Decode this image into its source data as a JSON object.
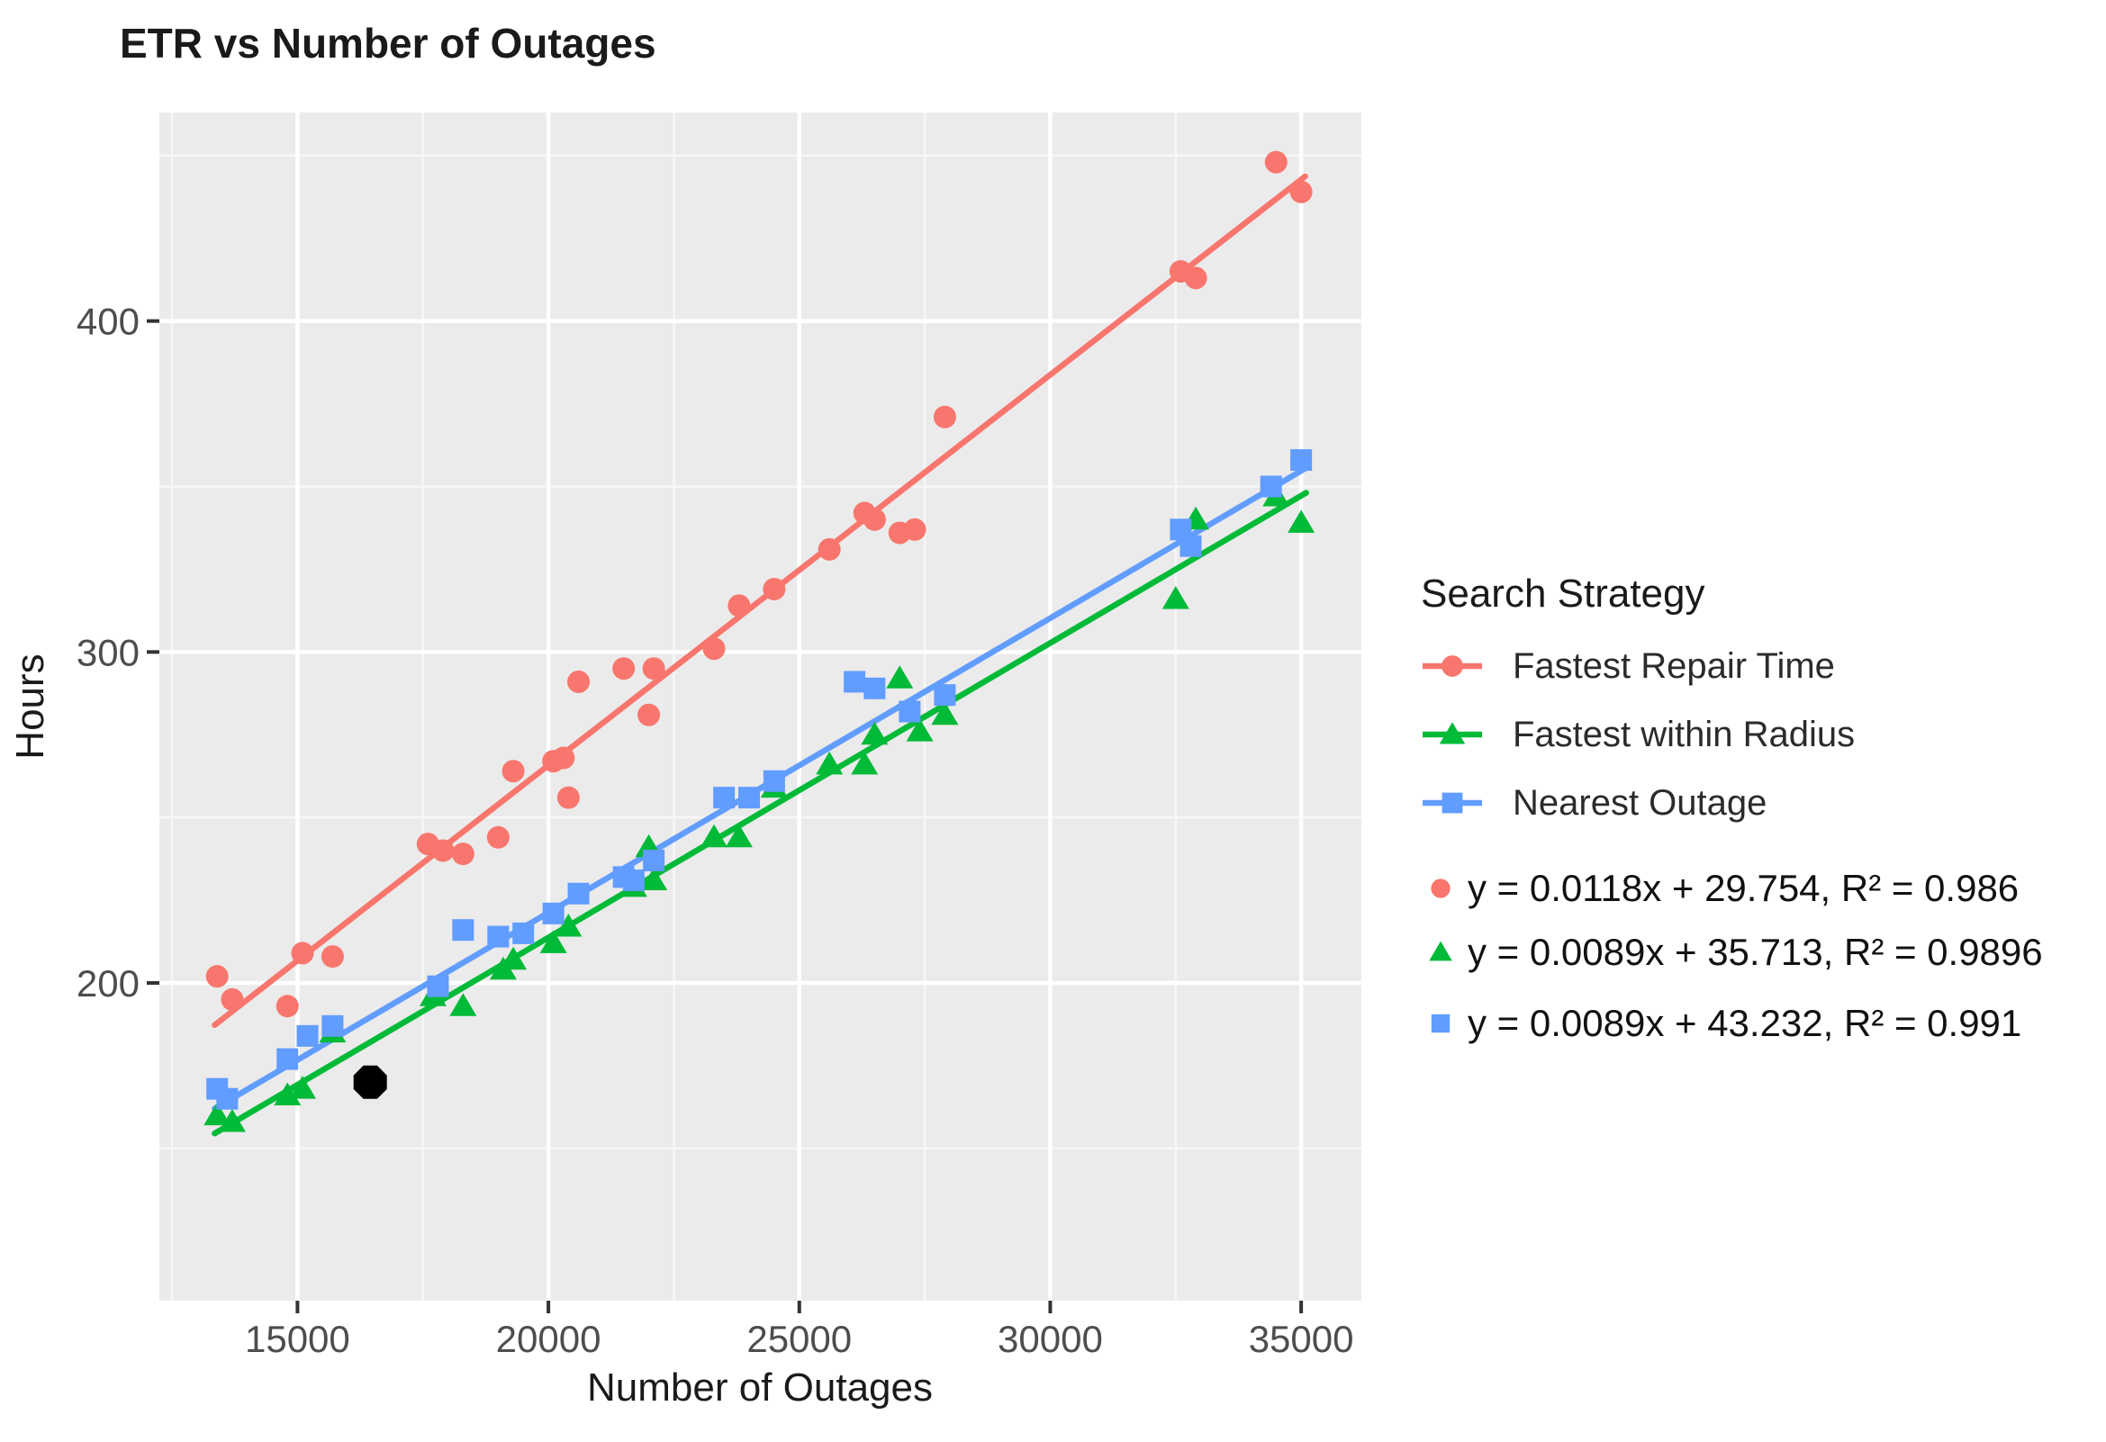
{
  "title": "ETR vs Number of Outages",
  "axes": {
    "x": {
      "label": "Number of Outages",
      "ticks": [
        15000,
        20000,
        25000,
        30000,
        35000
      ],
      "minor_ticks": [
        12500,
        17500,
        22500,
        27500,
        32500
      ]
    },
    "y": {
      "label": "Hours",
      "ticks": [
        200,
        300,
        400
      ],
      "minor_ticks": [
        150,
        250,
        350,
        450
      ]
    }
  },
  "legend": {
    "title": "Search Strategy",
    "items": [
      {
        "label": "Fastest Repair Time",
        "marker": "circle",
        "color": "#F8766D"
      },
      {
        "label": "Fastest within Radius",
        "marker": "triangle",
        "color": "#00BA38"
      },
      {
        "label": "Nearest Outage",
        "marker": "square",
        "color": "#619CFF"
      }
    ],
    "equations": [
      {
        "marker": "circle",
        "color": "#F8766D",
        "text": "y = 0.0118x + 29.754, R² = 0.986"
      },
      {
        "marker": "triangle",
        "color": "#00BA38",
        "text": "y = 0.0089x + 35.713, R² = 0.9896"
      },
      {
        "marker": "square",
        "color": "#619CFF",
        "text": "y = 0.0089x + 43.232, R² = 0.991"
      }
    ]
  },
  "colors": {
    "plot_bg": "#EBEBEB",
    "grid_major": "#FFFFFF",
    "grid_minor": "#F7F7F7",
    "tick_mark": "#333333",
    "tick_label": "#4D4D4D",
    "highlight": "#000000"
  },
  "chart_data": {
    "type": "scatter",
    "title": "ETR vs Number of Outages",
    "xlabel": "Number of Outages",
    "ylabel": "Hours",
    "xlim": [
      12248,
      36200
    ],
    "ylim": [
      104,
      463
    ],
    "grid": true,
    "legend_position": "right",
    "series": [
      {
        "name": "Fastest Repair Time",
        "marker": "circle",
        "color": "#F8766D",
        "trend": {
          "slope": 0.0118,
          "intercept": 29.754,
          "r2": 0.986,
          "x_range": [
            13350,
            35080
          ]
        },
        "points": [
          [
            13400,
            202
          ],
          [
            13700,
            195
          ],
          [
            14800,
            193
          ],
          [
            15100,
            209
          ],
          [
            15700,
            208
          ],
          [
            17600,
            242
          ],
          [
            17900,
            240
          ],
          [
            18300,
            239
          ],
          [
            19000,
            244
          ],
          [
            19300,
            264
          ],
          [
            20100,
            267
          ],
          [
            20300,
            268
          ],
          [
            20400,
            256
          ],
          [
            20600,
            291
          ],
          [
            21500,
            295
          ],
          [
            22000,
            281
          ],
          [
            22100,
            295
          ],
          [
            23300,
            301
          ],
          [
            23800,
            314
          ],
          [
            24500,
            319
          ],
          [
            25600,
            331
          ],
          [
            26300,
            342
          ],
          [
            26500,
            340
          ],
          [
            27000,
            336
          ],
          [
            27300,
            337
          ],
          [
            27900,
            371
          ],
          [
            32600,
            415
          ],
          [
            32900,
            413
          ],
          [
            34500,
            448
          ],
          [
            35000,
            439
          ]
        ]
      },
      {
        "name": "Fastest within Radius",
        "marker": "triangle",
        "color": "#00BA38",
        "trend": {
          "slope": 0.0089,
          "intercept": 35.713,
          "r2": 0.9896,
          "x_range": [
            13350,
            35100
          ]
        },
        "points": [
          [
            13400,
            160
          ],
          [
            13700,
            158
          ],
          [
            14800,
            166
          ],
          [
            15100,
            168
          ],
          [
            15700,
            185
          ],
          [
            17700,
            196
          ],
          [
            18300,
            193
          ],
          [
            19100,
            204
          ],
          [
            19300,
            207
          ],
          [
            20100,
            212
          ],
          [
            20400,
            217
          ],
          [
            21700,
            229
          ],
          [
            22000,
            241
          ],
          [
            22100,
            231
          ],
          [
            23300,
            244
          ],
          [
            23800,
            244
          ],
          [
            24500,
            259
          ],
          [
            25600,
            266
          ],
          [
            26300,
            266
          ],
          [
            26500,
            275
          ],
          [
            27000,
            292
          ],
          [
            27400,
            276
          ],
          [
            27900,
            281
          ],
          [
            32500,
            316
          ],
          [
            32900,
            340
          ],
          [
            34500,
            347
          ],
          [
            35000,
            339
          ]
        ]
      },
      {
        "name": "Nearest Outage",
        "marker": "square",
        "color": "#619CFF",
        "trend": {
          "slope": 0.0089,
          "intercept": 43.232,
          "r2": 0.991,
          "x_range": [
            13350,
            35100
          ]
        },
        "points": [
          [
            13400,
            168
          ],
          [
            13600,
            165
          ],
          [
            14800,
            177
          ],
          [
            15200,
            184
          ],
          [
            15700,
            187
          ],
          [
            17800,
            199
          ],
          [
            18300,
            216
          ],
          [
            19000,
            214
          ],
          [
            19500,
            215
          ],
          [
            20100,
            221
          ],
          [
            20600,
            227
          ],
          [
            21500,
            232
          ],
          [
            21700,
            231
          ],
          [
            22100,
            237
          ],
          [
            23500,
            256
          ],
          [
            24000,
            256
          ],
          [
            24500,
            261
          ],
          [
            26100,
            291
          ],
          [
            26500,
            289
          ],
          [
            27200,
            282
          ],
          [
            27900,
            287
          ],
          [
            32600,
            337
          ],
          [
            32800,
            332
          ],
          [
            34400,
            350
          ],
          [
            35000,
            358
          ]
        ]
      }
    ],
    "highlight_point": {
      "x": 16450,
      "y": 170,
      "color": "#000000",
      "marker": "octagon"
    }
  }
}
